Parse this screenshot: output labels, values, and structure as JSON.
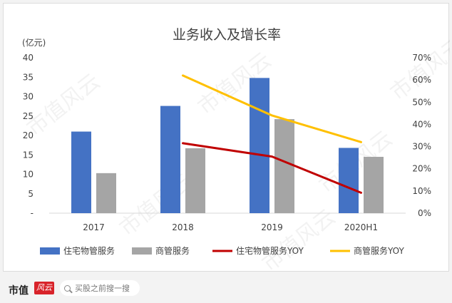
{
  "chart_data": {
    "type": "bar",
    "title": "业务收入及增长率",
    "left_axis_unit": "(亿元)",
    "categories": [
      "2017",
      "2018",
      "2019",
      "2020H1"
    ],
    "left_axis": {
      "ylim": [
        0,
        40
      ],
      "ticks": [
        "-",
        "5",
        "10",
        "15",
        "20",
        "25",
        "30",
        "35",
        "40"
      ]
    },
    "right_axis": {
      "ylim": [
        0,
        0.7
      ],
      "ticks": [
        "0%",
        "10%",
        "20%",
        "30%",
        "40%",
        "50%",
        "60%",
        "70%"
      ]
    },
    "bar_series": [
      {
        "name": "住宅物管服务",
        "color": "#4472c4",
        "values": [
          21.0,
          27.6,
          34.8,
          16.8
        ]
      },
      {
        "name": "商管服务",
        "color": "#a5a5a5",
        "values": [
          10.3,
          16.7,
          24.2,
          14.5
        ]
      }
    ],
    "line_series": [
      {
        "name": "住宅物管服务YOY",
        "color": "#c00000",
        "values": [
          null,
          0.315,
          0.255,
          0.092
        ]
      },
      {
        "name": "商管服务YOY",
        "color": "#ffc000",
        "values": [
          null,
          0.62,
          0.44,
          0.32
        ]
      }
    ],
    "legend_position": "bottom",
    "grid": false
  },
  "footer": {
    "brand": "市值",
    "brand_mark": "风云",
    "search_placeholder": "买股之前搜一搜"
  },
  "watermark": "市值风云"
}
